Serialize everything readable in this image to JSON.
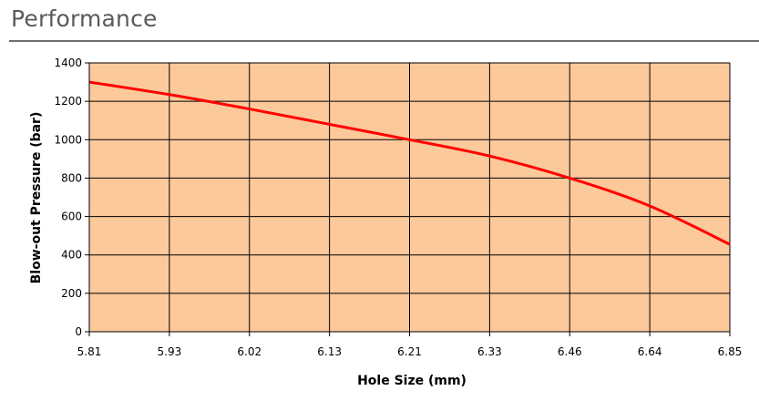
{
  "section_title": "Performance",
  "chart_data": {
    "type": "line",
    "xlabel": "Hole Size (mm)",
    "ylabel": "Blow-out Pressure (bar)",
    "ylim": [
      0,
      1400
    ],
    "yticks": [
      0,
      200,
      400,
      600,
      800,
      1000,
      1200,
      1400
    ],
    "categories": [
      "5.81",
      "5.93",
      "6.02",
      "6.13",
      "6.21",
      "6.33",
      "6.46",
      "6.64",
      "6.85"
    ],
    "series": [
      {
        "values": [
          1300,
          1235,
          1160,
          1080,
          1000,
          915,
          800,
          655,
          455
        ]
      }
    ],
    "grid": true,
    "plot_background": "#fcc99b",
    "line_color": "#ff0000"
  }
}
